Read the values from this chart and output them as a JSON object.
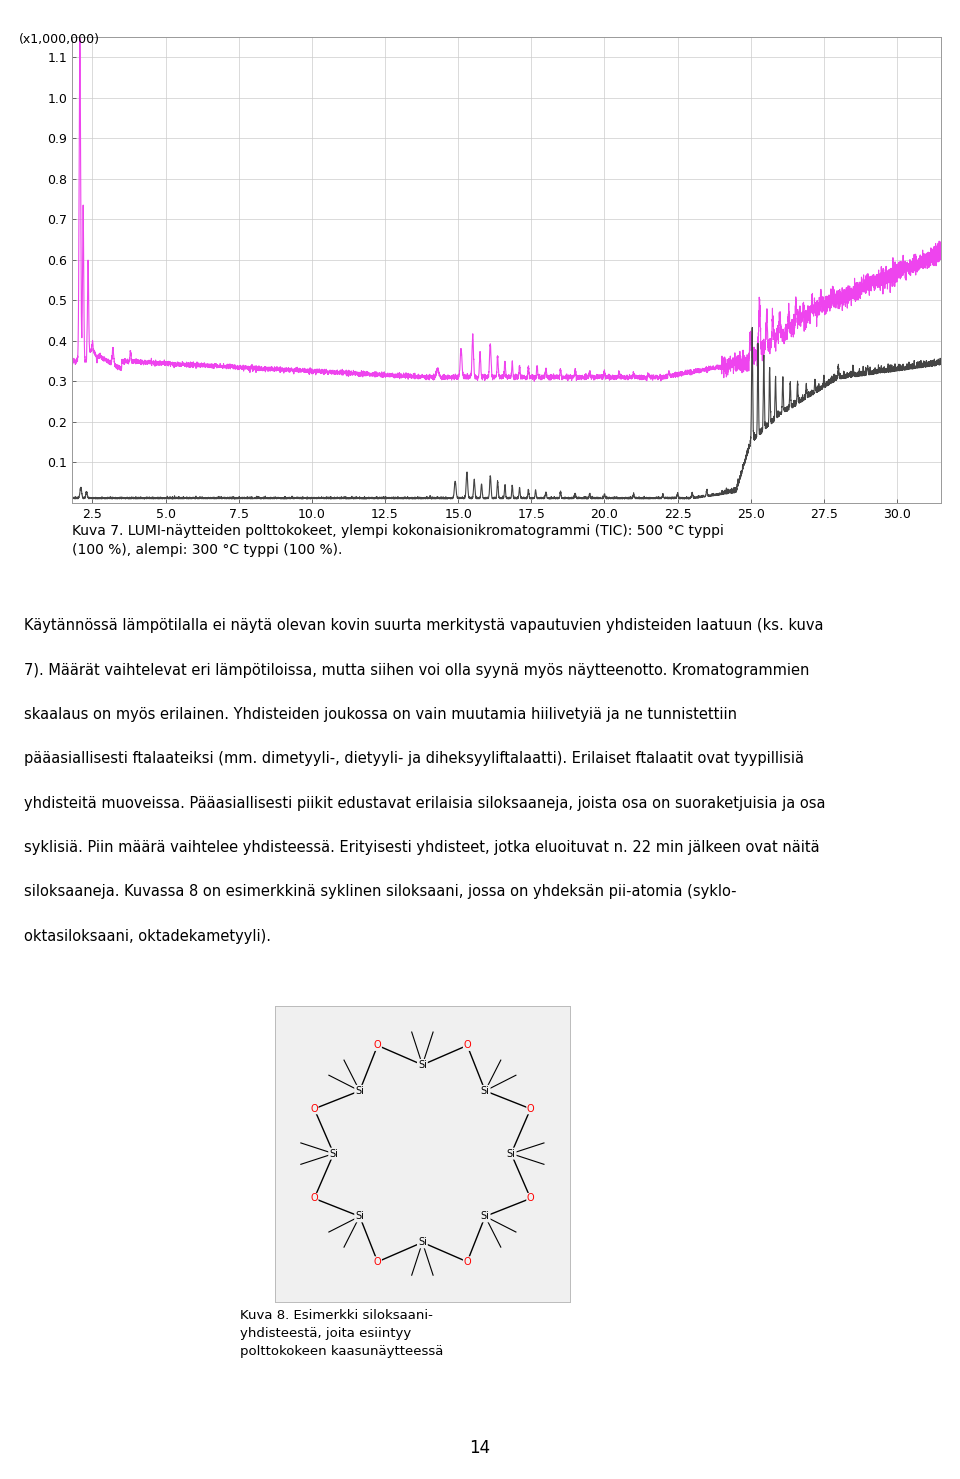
{
  "title_label": "(x1,000,000)",
  "ylim": [
    0.0,
    1.15
  ],
  "xlim": [
    1.8,
    31.5
  ],
  "yticks": [
    0.1,
    0.2,
    0.3,
    0.4,
    0.5,
    0.6,
    0.7,
    0.8,
    0.9,
    1.0,
    1.1
  ],
  "xticks": [
    2.5,
    5.0,
    7.5,
    10.0,
    12.5,
    15.0,
    17.5,
    20.0,
    22.5,
    25.0,
    27.5,
    30.0
  ],
  "xtick_labels": [
    "2.5",
    "5.0",
    "7.5",
    "10.0",
    "12.5",
    "15.0",
    "17.5",
    "20.0",
    "22.5",
    "25.0",
    "27.5",
    "30.0"
  ],
  "line1_color": "#EE44EE",
  "line2_color": "#444444",
  "caption": "Kuva 7. LUMI-näytteiden polttokokeet, ylempi kokonaisionikromatogrammi (TIC): 500 °C typpi\n(100 %), alempi: 300 °C typpi (100 %).",
  "body_text_lines": [
    "Käytännössä lämpötilalla ei näytä olevan kovin suurta merkitystä vapautuvien yhdisteiden laatuun (ks. kuva",
    "7). Määrät vaihtelevat eri lämpötiloissa, mutta siihen voi olla syynä myös näytteenotto. Kromatogrammien",
    "skaalaus on myös erilainen. Yhdisteiden joukossa on vain muutamia hiilivetyiä ja ne tunnistettiin",
    "pääasiallisesti ftalaateiksi (mm. dimetyyli-, dietyyli- ja diheksyyliftalaatti). Erilaiset ftalaatit ovat tyypillisiä",
    "yhdisteitä muoveissa. Pääasiallisesti piikit edustavat erilaisia siloksaaneja, joista osa on suoraketjuisia ja osa",
    "syklisiä. Piin määrä vaihtelee yhdisteessä. Erityisesti yhdisteet, jotka eluoituvat n. 22 min jälkeen ovat näitä",
    "siloksaaneja. Kuvassa 8 on esimerkkinä syklinen siloksaani, jossa on yhdeksän pii-atomia (syklo-",
    "oktasiloksaani, oktadekametyyli)."
  ],
  "figure8_caption": "Kuva 8. Esimerkki siloksaani-\nyhdisteestä, joita esiintyy\npolttokokeen kaasunäytteessä",
  "page_number": "14",
  "background_color": "#ffffff",
  "grid_color": "#cccccc"
}
